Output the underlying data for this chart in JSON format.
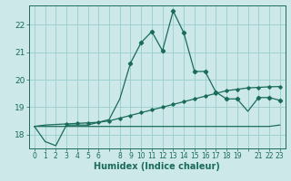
{
  "xlabel": "Humidex (Indice chaleur)",
  "bg_color": "#cce8e8",
  "line_color": "#1a6b5a",
  "grid_color": "#99cccc",
  "xlim": [
    -0.5,
    23.5
  ],
  "ylim": [
    17.5,
    22.7
  ],
  "yticks": [
    18,
    19,
    20,
    21,
    22
  ],
  "xtick_labels": [
    "0",
    "1",
    "2",
    "3",
    "4",
    "5",
    "6",
    "",
    "8",
    "9",
    "10",
    "11",
    "12",
    "13",
    "14",
    "15",
    "16",
    "17",
    "18",
    "19",
    "",
    "21",
    "22",
    "23"
  ],
  "curve1_x": [
    0,
    1,
    2,
    3,
    4,
    5,
    6,
    7,
    8,
    9,
    10,
    11,
    12,
    13,
    14,
    15,
    16,
    17,
    18,
    19,
    20,
    21,
    22,
    23
  ],
  "curve1_y": [
    18.3,
    17.75,
    17.6,
    18.35,
    18.35,
    18.35,
    18.45,
    18.55,
    19.3,
    20.6,
    21.35,
    21.75,
    21.05,
    22.5,
    21.7,
    20.3,
    20.3,
    19.55,
    19.3,
    19.3,
    18.85,
    19.35,
    19.35,
    19.25
  ],
  "curve2_x": [
    0,
    1,
    2,
    3,
    4,
    5,
    6,
    7,
    8,
    9,
    10,
    11,
    12,
    13,
    14,
    15,
    16,
    17,
    18,
    19,
    20,
    21,
    22,
    23
  ],
  "curve2_y": [
    18.3,
    18.35,
    18.37,
    18.39,
    18.41,
    18.43,
    18.45,
    18.5,
    18.6,
    18.7,
    18.8,
    18.9,
    19.0,
    19.1,
    19.2,
    19.3,
    19.4,
    19.5,
    19.6,
    19.65,
    19.7,
    19.72,
    19.74,
    19.75
  ],
  "curve3_x": [
    0,
    1,
    2,
    3,
    4,
    5,
    6,
    7,
    8,
    9,
    10,
    11,
    12,
    13,
    14,
    15,
    16,
    17,
    18,
    19,
    20,
    21,
    22,
    23
  ],
  "curve3_y": [
    18.3,
    18.3,
    18.3,
    18.3,
    18.3,
    18.3,
    18.3,
    18.3,
    18.3,
    18.3,
    18.3,
    18.3,
    18.3,
    18.3,
    18.3,
    18.3,
    18.3,
    18.3,
    18.3,
    18.3,
    18.3,
    18.3,
    18.3,
    18.35
  ],
  "marker1_x": [
    9,
    10,
    11,
    12,
    13,
    14,
    15,
    16,
    17,
    18,
    19,
    21,
    22,
    23
  ],
  "marker1_y": [
    20.6,
    21.35,
    21.75,
    21.05,
    22.5,
    21.7,
    20.3,
    20.3,
    19.55,
    19.3,
    19.3,
    19.35,
    19.35,
    19.25
  ],
  "marker2_x": [
    3,
    4,
    5,
    6,
    7,
    8,
    9,
    10,
    11,
    12,
    13,
    14,
    15,
    16,
    17,
    18,
    19,
    20,
    21,
    22,
    23
  ],
  "marker2_y": [
    18.39,
    18.41,
    18.43,
    18.45,
    18.5,
    18.6,
    18.7,
    18.8,
    18.9,
    19.0,
    19.1,
    19.2,
    19.3,
    19.4,
    19.5,
    19.6,
    19.65,
    19.7,
    19.72,
    19.74,
    19.75
  ]
}
